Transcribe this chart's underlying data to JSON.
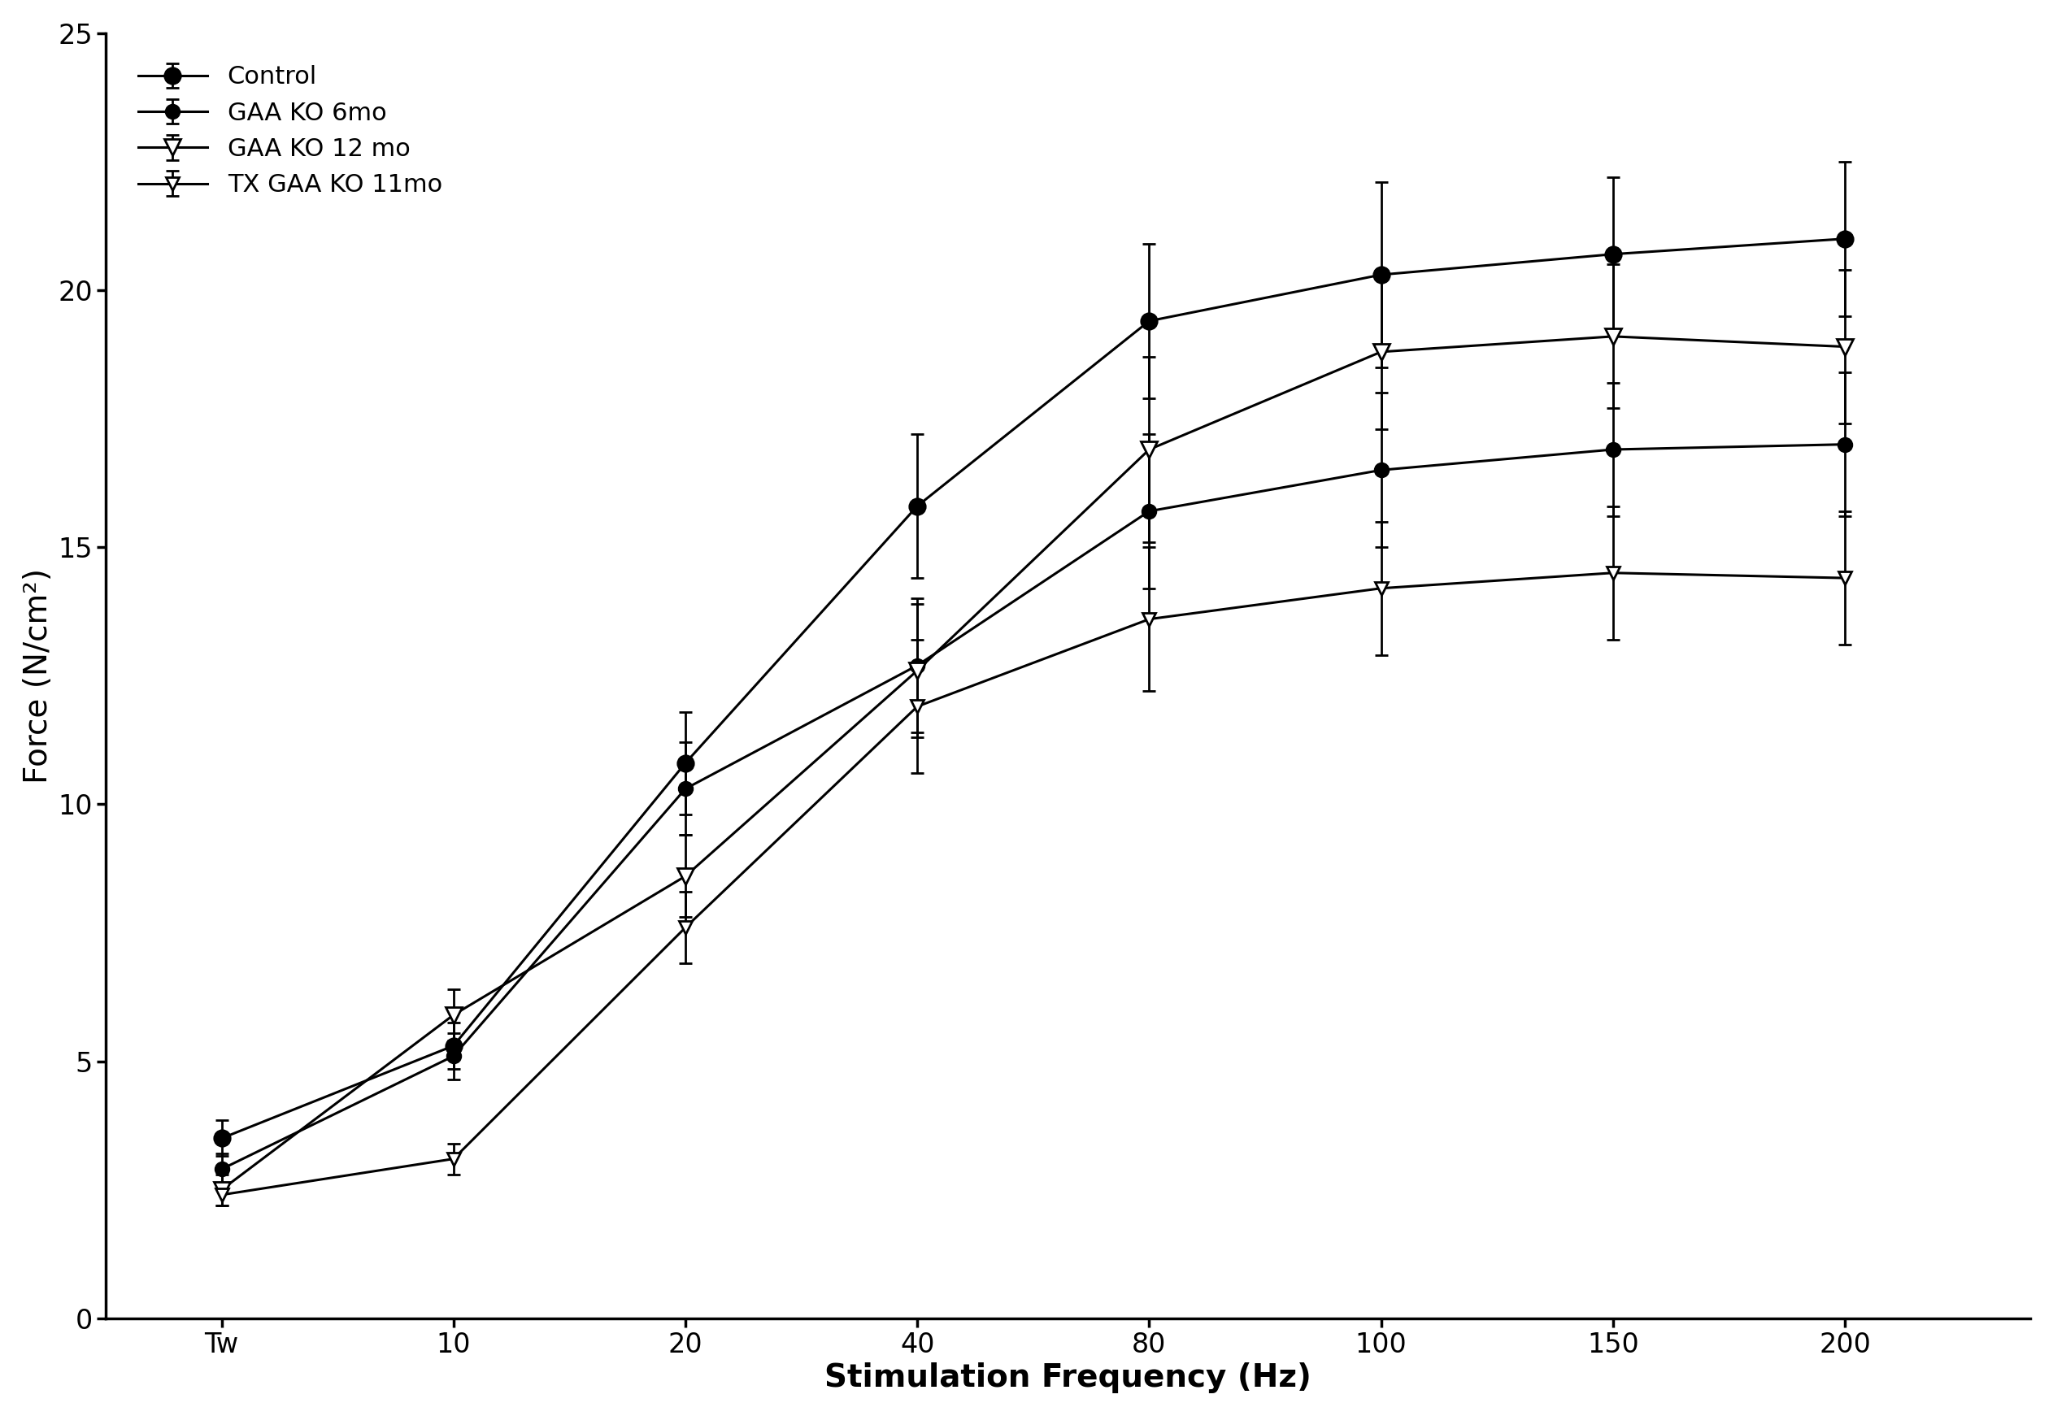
{
  "x_positions": [
    0,
    1,
    2,
    3,
    4,
    5,
    6,
    7
  ],
  "x_labels": [
    "Tw",
    "10",
    "20",
    "40",
    "80",
    "100",
    "150",
    "200"
  ],
  "series": [
    {
      "label": "Control",
      "y": [
        3.5,
        5.3,
        10.8,
        15.8,
        19.4,
        20.3,
        20.7,
        21.0
      ],
      "yerr": [
        0.35,
        0.45,
        1.0,
        1.4,
        1.5,
        1.8,
        1.5,
        1.5
      ],
      "marker": "o",
      "markersize": 14,
      "color": "#000000",
      "fillstyle": "full",
      "linewidth": 2.2
    },
    {
      "label": "GAA KO 6mo",
      "y": [
        2.9,
        5.1,
        10.3,
        12.7,
        15.7,
        16.5,
        16.9,
        17.0
      ],
      "yerr": [
        0.3,
        0.45,
        0.9,
        1.3,
        1.5,
        1.5,
        1.3,
        1.4
      ],
      "marker": "o",
      "markersize": 12,
      "color": "#000000",
      "fillstyle": "full",
      "linewidth": 2.2
    },
    {
      "label": "GAA KO 12 mo",
      "y": [
        2.5,
        5.9,
        8.6,
        12.6,
        16.9,
        18.8,
        19.1,
        18.9
      ],
      "yerr": [
        0.3,
        0.5,
        0.8,
        1.3,
        1.8,
        1.5,
        1.4,
        1.5
      ],
      "marker": "v",
      "markersize": 14,
      "color": "#000000",
      "fillstyle": "none",
      "linewidth": 2.2
    },
    {
      "label": "TX GAA KO 11mo",
      "y": [
        2.4,
        3.1,
        7.6,
        11.9,
        13.6,
        14.2,
        14.5,
        14.4
      ],
      "yerr": [
        0.2,
        0.3,
        0.7,
        1.3,
        1.4,
        1.3,
        1.3,
        1.3
      ],
      "marker": "v",
      "markersize": 12,
      "color": "#000000",
      "fillstyle": "none",
      "linewidth": 2.2
    }
  ],
  "xlabel": "Stimulation Frequency (Hz)",
  "ylabel": "Force (N/cm²)",
  "ylim": [
    0,
    25
  ],
  "yticks": [
    0,
    5,
    10,
    15,
    20,
    25
  ],
  "background_color": "#ffffff",
  "legend_fontsize": 22,
  "axis_label_fontsize": 28,
  "tick_fontsize": 24
}
